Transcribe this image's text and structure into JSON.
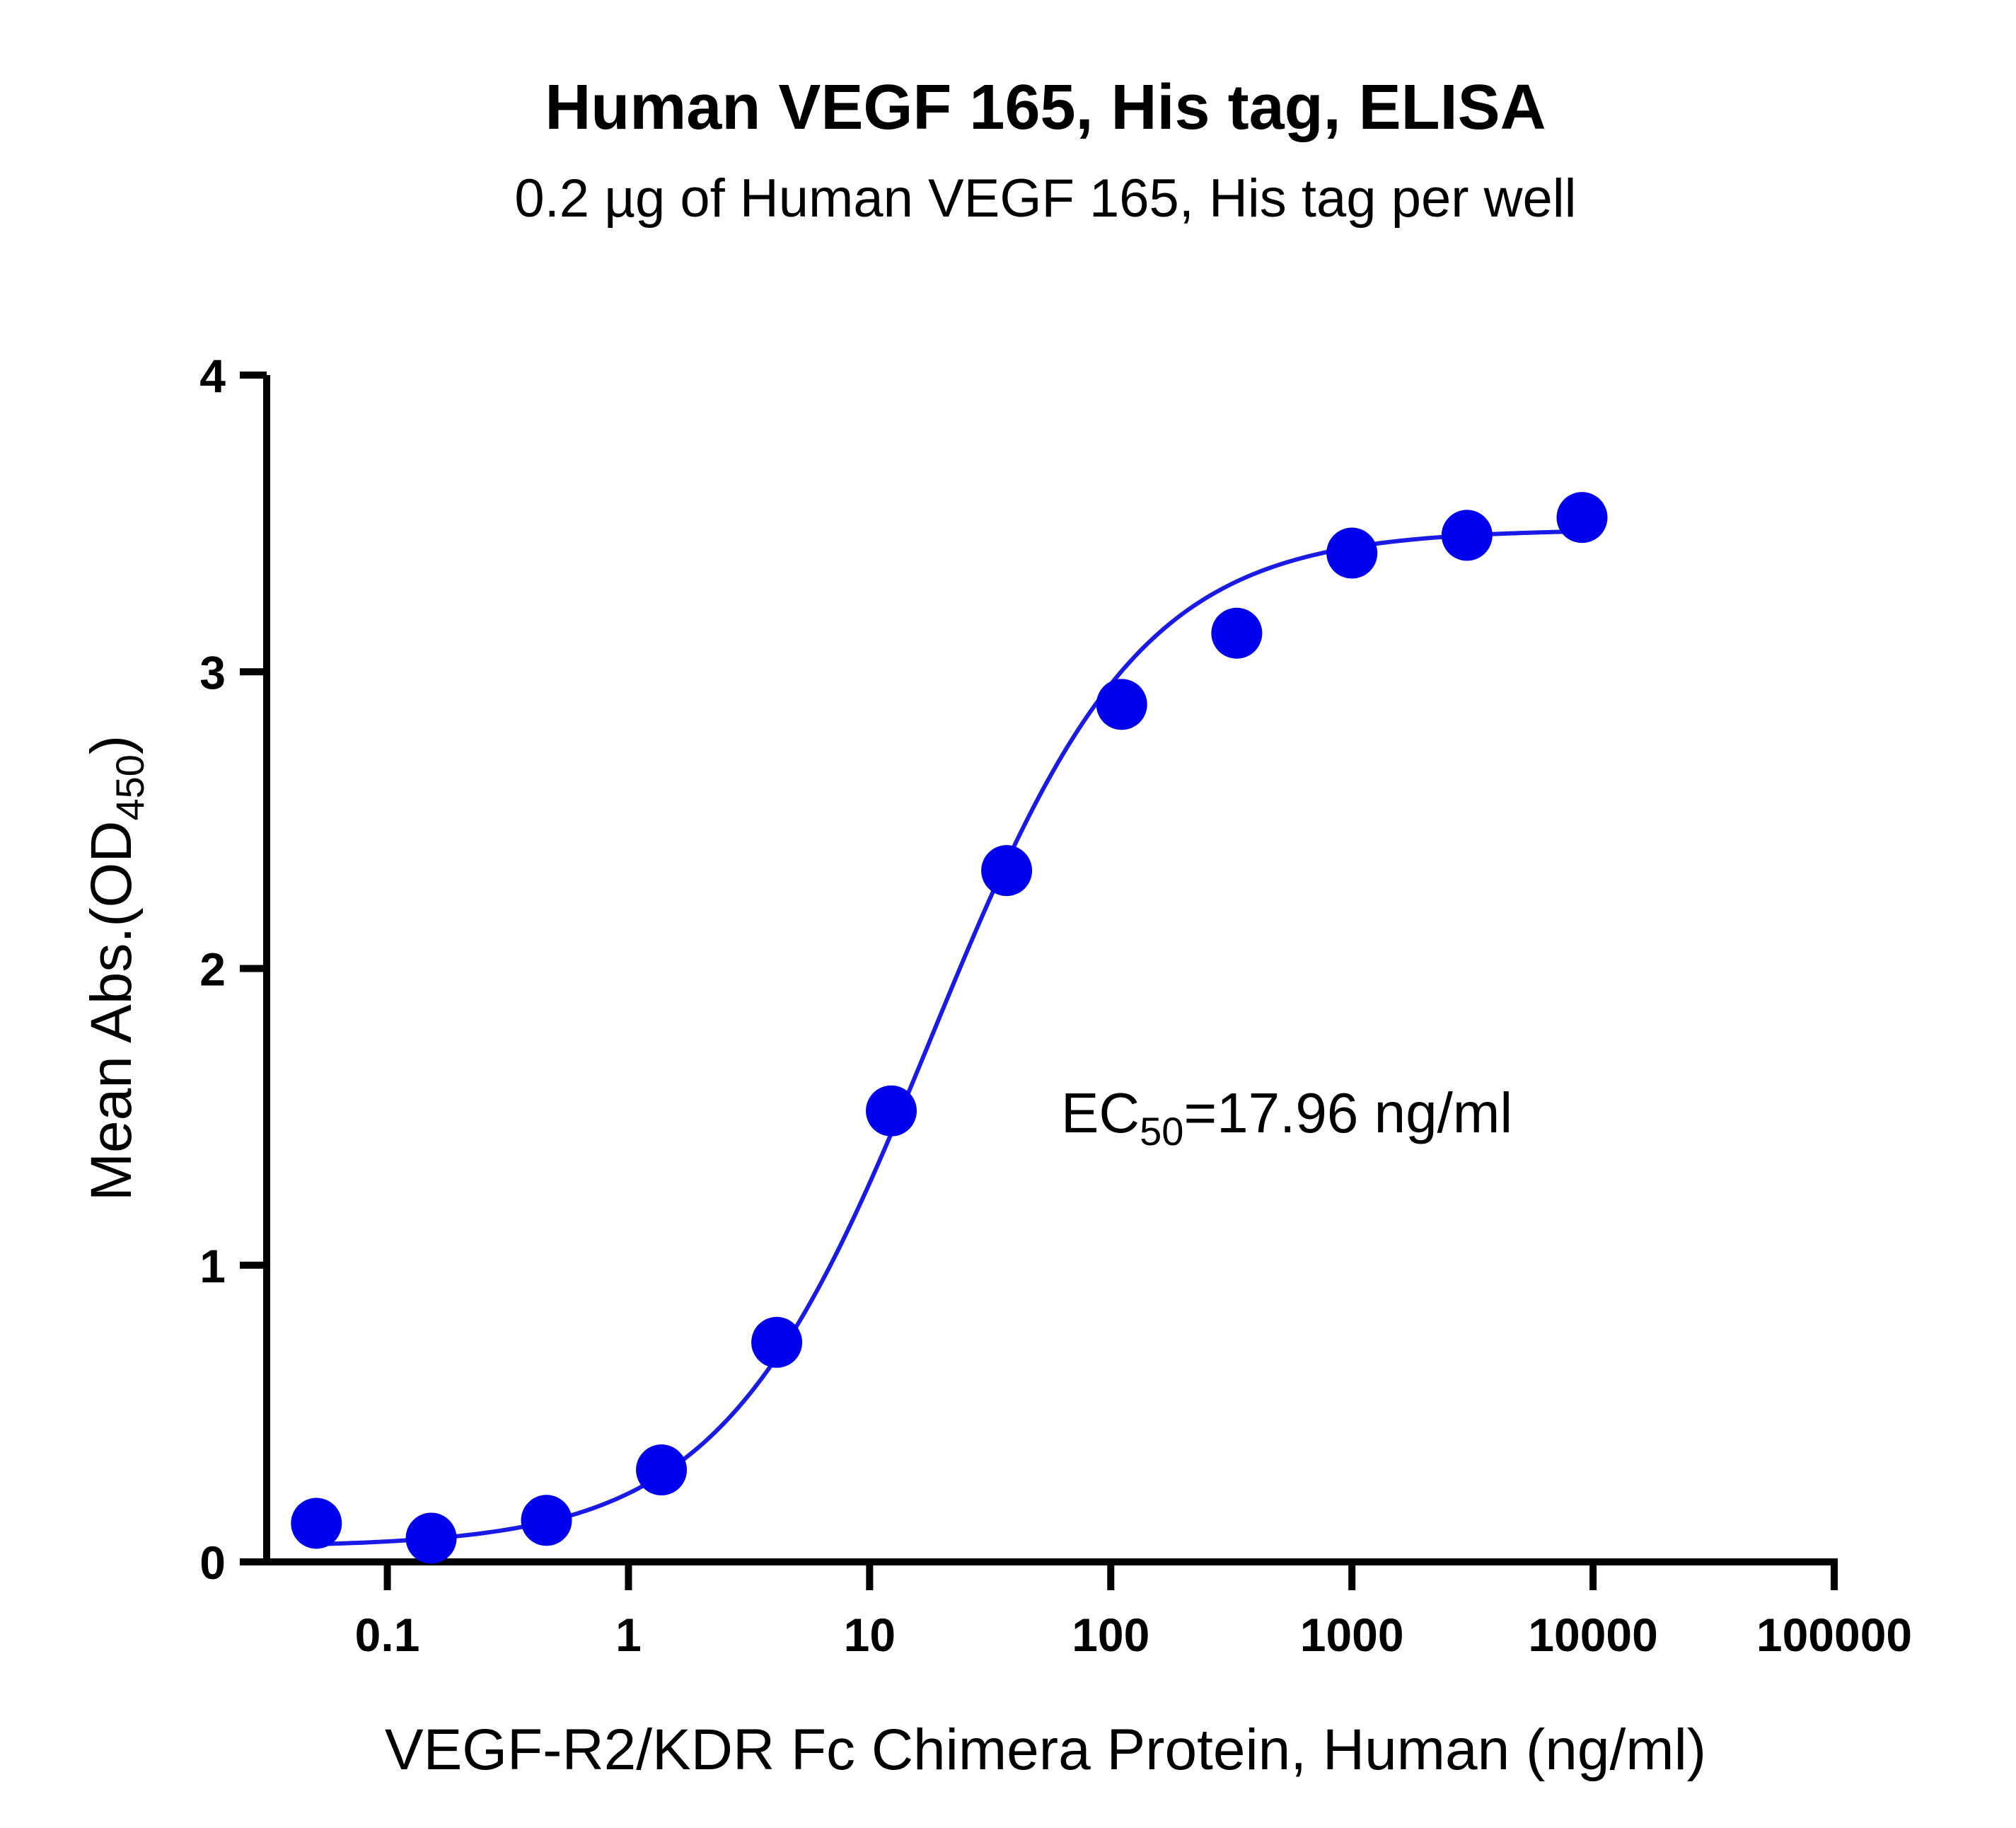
{
  "chart_data": {
    "type": "scatter",
    "title": "Human VEGF 165, His tag, ELISA",
    "subtitle": "0.2 µg of Human VEGF 165, His tag per well",
    "xlabel": "VEGF-R2/KDR Fc Chimera Protein, Human (ng/ml)",
    "ylabel": {
      "main": "Mean Abs.(OD",
      "sub": "450",
      "end": ")"
    },
    "x_scale": "log",
    "xlim": [
      0.0316,
      100000
    ],
    "ylim": [
      0,
      4
    ],
    "x_ticks": [
      0.1,
      1,
      10,
      100,
      1000,
      10000,
      100000
    ],
    "x_tick_labels": [
      "0.1",
      "1",
      "10",
      "100",
      "1000",
      "10000",
      "100000"
    ],
    "y_ticks": [
      0,
      1,
      2,
      3,
      4
    ],
    "y_tick_labels": [
      "0",
      "1",
      "2",
      "3",
      "4"
    ],
    "grid": false,
    "annotation": {
      "main": "EC",
      "sub": "50",
      "end": "=17.96 ng/ml"
    },
    "series": [
      {
        "color": "#0000ee",
        "marker": "circle",
        "points": [
          {
            "x": 0.0508,
            "y": 0.13
          },
          {
            "x": 0.152,
            "y": 0.08
          },
          {
            "x": 0.457,
            "y": 0.14
          },
          {
            "x": 1.37,
            "y": 0.31
          },
          {
            "x": 4.12,
            "y": 0.74
          },
          {
            "x": 12.3,
            "y": 1.52
          },
          {
            "x": 37.0,
            "y": 2.33
          },
          {
            "x": 111,
            "y": 2.89
          },
          {
            "x": 333,
            "y": 3.13
          },
          {
            "x": 1000,
            "y": 3.4
          },
          {
            "x": 3000,
            "y": 3.46
          },
          {
            "x": 9000,
            "y": 3.52
          }
        ],
        "fit": {
          "model": "4PL",
          "bottom": 0.05,
          "top": 3.48,
          "ec50": 17.96,
          "hill": 1.0,
          "x_range": [
            0.05,
            9000
          ]
        }
      }
    ]
  }
}
